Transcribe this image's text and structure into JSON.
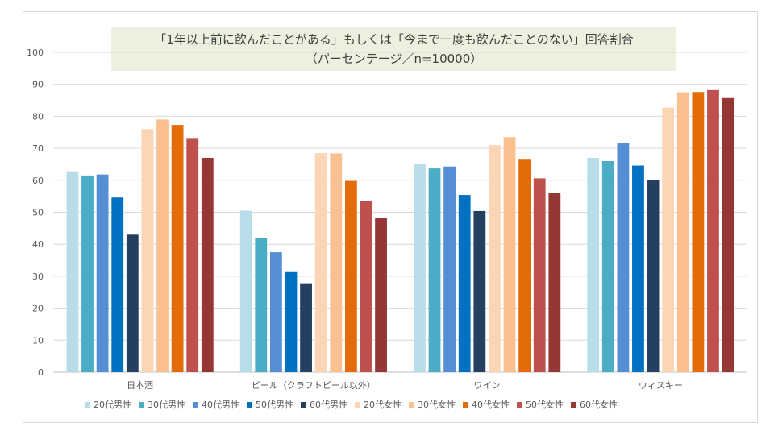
{
  "chart_data": {
    "type": "bar",
    "title": "「1年以上前に飲んだことがある」もしくは「今まで一度も飲んだことのない」回答割合",
    "subtitle": "（パーセンテージ／n=10000）",
    "categories": [
      "日本酒",
      "ビール（クラフトビール以外）",
      "ワイン",
      "ウィスキー"
    ],
    "ylim": [
      0,
      100
    ],
    "yticks": [
      0,
      10,
      20,
      30,
      40,
      50,
      60,
      70,
      80,
      90,
      100
    ],
    "grid": true,
    "legend_position": "bottom",
    "series": [
      {
        "name": "20代男性",
        "color": "#b7dee8",
        "values": [
          62.8,
          50.5,
          65.0,
          67.0
        ]
      },
      {
        "name": "30代男性",
        "color": "#4bacc6",
        "values": [
          61.5,
          42.0,
          63.7,
          66.0
        ]
      },
      {
        "name": "40代男性",
        "color": "#558ed5",
        "values": [
          61.8,
          37.5,
          64.3,
          71.7
        ]
      },
      {
        "name": "50代男性",
        "color": "#0070c0",
        "values": [
          54.6,
          31.3,
          55.4,
          64.6
        ]
      },
      {
        "name": "60代男性",
        "color": "#243f60",
        "values": [
          43.0,
          27.8,
          50.4,
          60.2
        ]
      },
      {
        "name": "20代女性",
        "color": "#fcd5b5",
        "values": [
          76.0,
          68.5,
          71.0,
          82.7
        ]
      },
      {
        "name": "30代女性",
        "color": "#fac090",
        "values": [
          79.0,
          68.4,
          73.5,
          87.5
        ]
      },
      {
        "name": "40代女性",
        "color": "#e36c09",
        "values": [
          77.3,
          59.8,
          66.7,
          87.6
        ]
      },
      {
        "name": "50代女性",
        "color": "#c0504d",
        "values": [
          73.2,
          53.5,
          60.6,
          88.2
        ]
      },
      {
        "name": "60代女性",
        "color": "#953735",
        "values": [
          67.0,
          48.3,
          56.0,
          85.7
        ]
      }
    ]
  }
}
